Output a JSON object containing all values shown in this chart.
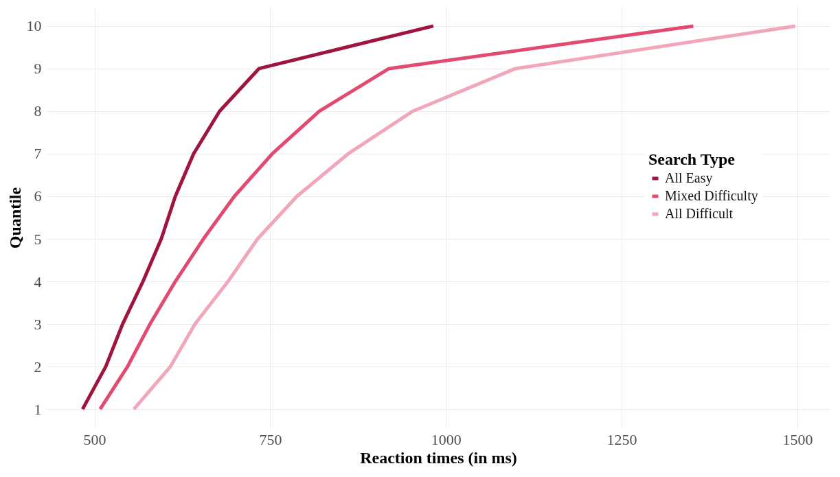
{
  "chart_data": {
    "type": "line",
    "xlabel": "Reaction times (in ms)",
    "ylabel": "Quantile",
    "legend_title": "Search Type",
    "series": [
      {
        "name": "All Easy",
        "color": "#a0153e",
        "x": [
          483,
          516,
          540,
          569,
          595,
          615,
          641,
          678,
          734,
          982
        ],
        "values": [
          1,
          2,
          3,
          4,
          5,
          6,
          7,
          8,
          9,
          10
        ]
      },
      {
        "name": "Mixed Difficulty",
        "color": "#e34a6f",
        "x": [
          508,
          547,
          579,
          615,
          655,
          699,
          753,
          820,
          919,
          1352
        ],
        "values": [
          1,
          2,
          3,
          4,
          5,
          6,
          7,
          8,
          9,
          10
        ]
      },
      {
        "name": "All Difficult",
        "color": "#f1a7b9",
        "x": [
          556,
          608,
          643,
          690,
          732,
          788,
          861,
          953,
          1099,
          1497
        ],
        "values": [
          1,
          2,
          3,
          4,
          5,
          6,
          7,
          8,
          9,
          10
        ]
      }
    ],
    "xlim": [
      432,
      1546
    ],
    "xticks": [
      500,
      750,
      1000,
      1250,
      1500
    ],
    "ylim": [
      0.55,
      10.45
    ],
    "yticks": [
      1,
      2,
      3,
      4,
      5,
      6,
      7,
      8,
      9,
      10
    ],
    "grid": true,
    "legend": "right",
    "marker": "none",
    "line_style": "solid"
  }
}
